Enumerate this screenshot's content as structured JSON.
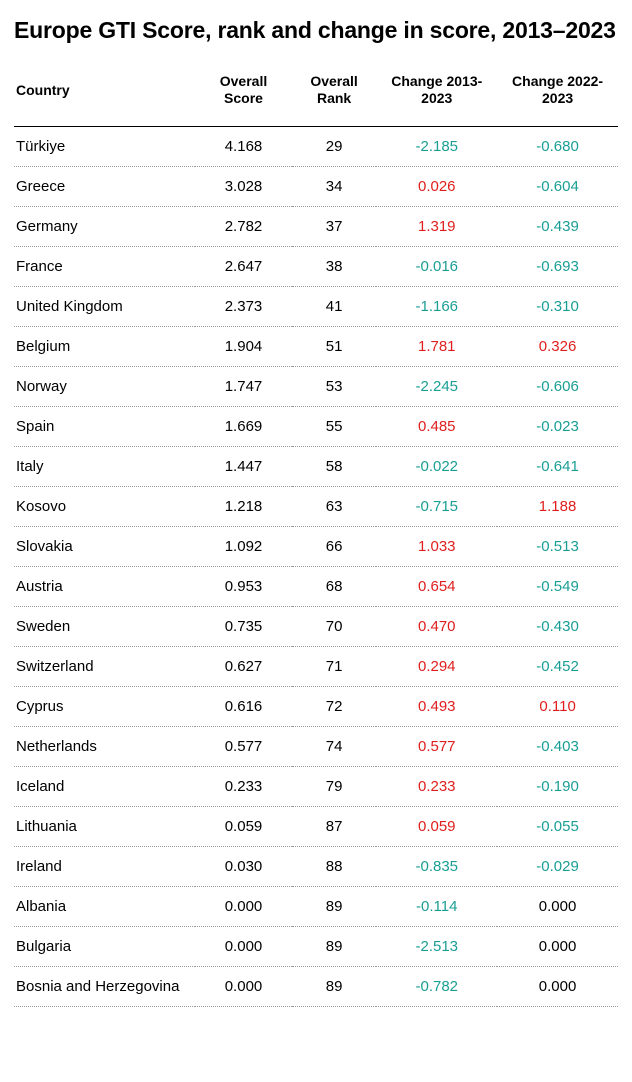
{
  "title": "Europe GTI Score, rank and change in score, 2013–2023",
  "colors": {
    "negative": "#1a9e94",
    "positive": "#e01e1e",
    "zero": "#000000",
    "header_border": "#000000",
    "row_border": "#9a9a9a",
    "background": "#ffffff"
  },
  "columns": [
    {
      "key": "country",
      "label": "Country",
      "align": "left"
    },
    {
      "key": "score",
      "label": "Overall Score",
      "align": "center"
    },
    {
      "key": "rank",
      "label": "Overall Rank",
      "align": "center"
    },
    {
      "key": "change1",
      "label": "Change 2013-2023",
      "align": "center"
    },
    {
      "key": "change2",
      "label": "Change 2022-2023",
      "align": "center"
    }
  ],
  "rows": [
    {
      "country": "Türkiye",
      "score": "4.168",
      "rank": "29",
      "change1": "-2.185",
      "change2": "-0.680"
    },
    {
      "country": "Greece",
      "score": "3.028",
      "rank": "34",
      "change1": "0.026",
      "change2": "-0.604"
    },
    {
      "country": "Germany",
      "score": "2.782",
      "rank": "37",
      "change1": "1.319",
      "change2": "-0.439"
    },
    {
      "country": "France",
      "score": "2.647",
      "rank": "38",
      "change1": "-0.016",
      "change2": "-0.693"
    },
    {
      "country": "United Kingdom",
      "score": "2.373",
      "rank": "41",
      "change1": "-1.166",
      "change2": "-0.310"
    },
    {
      "country": "Belgium",
      "score": "1.904",
      "rank": "51",
      "change1": "1.781",
      "change2": "0.326"
    },
    {
      "country": "Norway",
      "score": "1.747",
      "rank": "53",
      "change1": "-2.245",
      "change2": "-0.606"
    },
    {
      "country": "Spain",
      "score": "1.669",
      "rank": "55",
      "change1": "0.485",
      "change2": "-0.023"
    },
    {
      "country": "Italy",
      "score": "1.447",
      "rank": "58",
      "change1": "-0.022",
      "change2": "-0.641"
    },
    {
      "country": "Kosovo",
      "score": "1.218",
      "rank": "63",
      "change1": "-0.715",
      "change2": "1.188"
    },
    {
      "country": "Slovakia",
      "score": "1.092",
      "rank": "66",
      "change1": "1.033",
      "change2": "-0.513"
    },
    {
      "country": "Austria",
      "score": "0.953",
      "rank": "68",
      "change1": "0.654",
      "change2": "-0.549"
    },
    {
      "country": "Sweden",
      "score": "0.735",
      "rank": "70",
      "change1": "0.470",
      "change2": "-0.430"
    },
    {
      "country": "Switzerland",
      "score": "0.627",
      "rank": "71",
      "change1": "0.294",
      "change2": "-0.452"
    },
    {
      "country": "Cyprus",
      "score": "0.616",
      "rank": "72",
      "change1": "0.493",
      "change2": "0.110"
    },
    {
      "country": "Netherlands",
      "score": "0.577",
      "rank": "74",
      "change1": "0.577",
      "change2": "-0.403"
    },
    {
      "country": "Iceland",
      "score": "0.233",
      "rank": "79",
      "change1": "0.233",
      "change2": "-0.190"
    },
    {
      "country": "Lithuania",
      "score": "0.059",
      "rank": "87",
      "change1": "0.059",
      "change2": "-0.055"
    },
    {
      "country": "Ireland",
      "score": "0.030",
      "rank": "88",
      "change1": "-0.835",
      "change2": "-0.029"
    },
    {
      "country": "Albania",
      "score": "0.000",
      "rank": "89",
      "change1": "-0.114",
      "change2": "0.000"
    },
    {
      "country": "Bulgaria",
      "score": "0.000",
      "rank": "89",
      "change1": "-2.513",
      "change2": "0.000"
    },
    {
      "country": "Bosnia and Herzegovina",
      "score": "0.000",
      "rank": "89",
      "change1": "-0.782",
      "change2": "0.000"
    }
  ]
}
